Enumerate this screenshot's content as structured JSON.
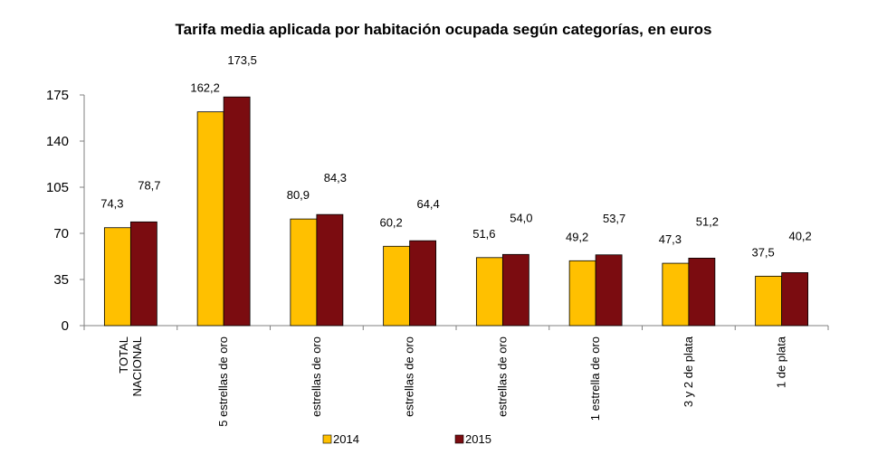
{
  "chart_data": {
    "type": "bar",
    "title": "Tarifa media aplicada por habitación ocupada según categorías, en euros",
    "xlabel": "",
    "ylabel": "",
    "ylim": [
      0,
      175
    ],
    "yticks": [
      0,
      35,
      70,
      105,
      140,
      175
    ],
    "grid": false,
    "legend_position": "bottom",
    "categories": [
      [
        "TOTAL",
        "NACIONAL"
      ],
      [
        "5 estrellas de oro"
      ],
      [
        "estrellas de oro"
      ],
      [
        "estrellas de oro"
      ],
      [
        "estrellas de oro"
      ],
      [
        "1 estrella de oro"
      ],
      [
        "3 y 2 de plata"
      ],
      [
        "1 de plata"
      ]
    ],
    "series": [
      {
        "name": "2014",
        "color": "#FFC000",
        "values": [
          74.3,
          162.2,
          80.9,
          60.2,
          51.6,
          49.2,
          47.3,
          37.5
        ],
        "labels": [
          "74,3",
          "162,2",
          "80,9",
          "60,2",
          "51,6",
          "49,2",
          "47,3",
          "37,5"
        ]
      },
      {
        "name": "2015",
        "color": "#7B0C10",
        "values": [
          78.7,
          173.5,
          84.3,
          64.4,
          54.0,
          53.7,
          51.2,
          40.2
        ],
        "labels": [
          "78,7",
          "173,5",
          "84,3",
          "64,4",
          "54,0",
          "53,7",
          "51,2",
          "40,2"
        ]
      }
    ]
  }
}
